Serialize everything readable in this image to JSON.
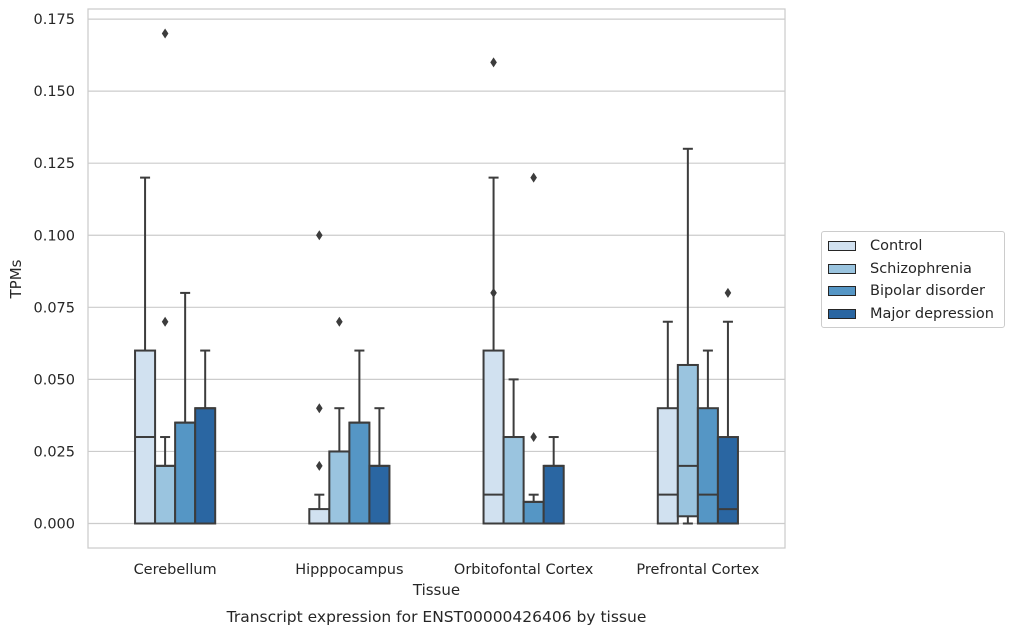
{
  "chart_data": {
    "type": "box",
    "title": "Transcript expression for ENST00000426406 by tissue",
    "xlabel": "Tissue",
    "ylabel": "TPMs",
    "ylim": [
      -0.0085,
      0.1785
    ],
    "yticks": [
      "0.000",
      "0.025",
      "0.050",
      "0.075",
      "0.100",
      "0.125",
      "0.150",
      "0.175"
    ],
    "ytick_values": [
      0,
      0.025,
      0.05,
      0.075,
      0.1,
      0.125,
      0.15,
      0.175
    ],
    "grid": true,
    "legend_position": "right",
    "categories": [
      "Cerebellum",
      "Hipppocampus",
      "Orbitofontal Cortex",
      "Prefrontal Cortex"
    ],
    "series": [
      {
        "name": "Control",
        "color": "#d1e1f0",
        "boxes": [
          {
            "min": 0,
            "q1": 0,
            "median": 0.03,
            "q3": 0.06,
            "max": 0.12,
            "outliers": []
          },
          {
            "min": 0,
            "q1": 0,
            "median": 0,
            "q3": 0.005,
            "max": 0.01,
            "outliers": [
              0.02,
              0.04,
              0.1
            ]
          },
          {
            "min": 0,
            "q1": 0,
            "median": 0.01,
            "q3": 0.06,
            "max": 0.12,
            "outliers": [
              0.08,
              0.16
            ]
          },
          {
            "min": 0,
            "q1": 0,
            "median": 0.01,
            "q3": 0.04,
            "max": 0.07,
            "outliers": []
          }
        ]
      },
      {
        "name": "Schizophrenia",
        "color": "#9ac4df",
        "boxes": [
          {
            "min": 0,
            "q1": 0,
            "median": 0.02,
            "q3": 0.02,
            "max": 0.03,
            "outliers": [
              0.07,
              0.17
            ]
          },
          {
            "min": 0,
            "q1": 0,
            "median": 0.025,
            "q3": 0.025,
            "max": 0.04,
            "outliers": [
              0.07
            ]
          },
          {
            "min": 0,
            "q1": 0,
            "median": 0.03,
            "q3": 0.03,
            "max": 0.05,
            "outliers": []
          },
          {
            "min": 0,
            "q1": 0.0025,
            "median": 0.02,
            "q3": 0.055,
            "max": 0.13,
            "outliers": []
          }
        ]
      },
      {
        "name": "Bipolar disorder",
        "color": "#5596c5",
        "boxes": [
          {
            "min": 0,
            "q1": 0,
            "median": 0.035,
            "q3": 0.035,
            "max": 0.08,
            "outliers": []
          },
          {
            "min": 0,
            "q1": 0,
            "median": 0.035,
            "q3": 0.035,
            "max": 0.06,
            "outliers": []
          },
          {
            "min": 0,
            "q1": 0,
            "median": 0.0075,
            "q3": 0.0075,
            "max": 0.01,
            "outliers": [
              0.03,
              0.12
            ]
          },
          {
            "min": 0,
            "q1": 0,
            "median": 0.01,
            "q3": 0.04,
            "max": 0.06,
            "outliers": []
          }
        ]
      },
      {
        "name": "Major depression",
        "color": "#2a66a2",
        "boxes": [
          {
            "min": 0,
            "q1": 0,
            "median": 0.04,
            "q3": 0.04,
            "max": 0.06,
            "outliers": []
          },
          {
            "min": 0,
            "q1": 0,
            "median": 0.02,
            "q3": 0.02,
            "max": 0.04,
            "outliers": []
          },
          {
            "min": 0,
            "q1": 0,
            "median": 0.02,
            "q3": 0.02,
            "max": 0.03,
            "outliers": []
          },
          {
            "min": 0,
            "q1": 0,
            "median": 0.005,
            "q3": 0.03,
            "max": 0.07,
            "outliers": [
              0.08
            ]
          }
        ]
      }
    ]
  }
}
